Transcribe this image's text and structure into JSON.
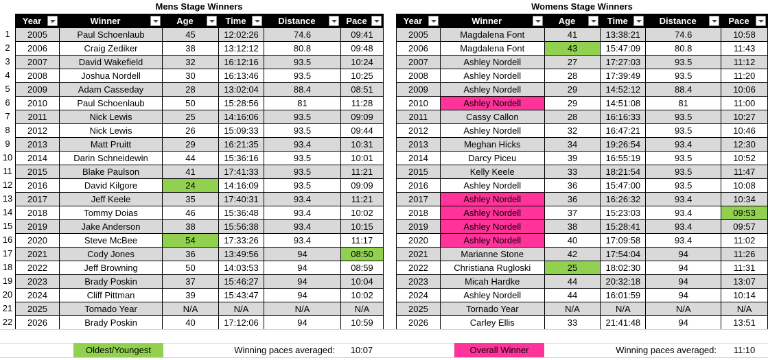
{
  "mens": {
    "title": "Mens Stage Winners",
    "headers": [
      "Year",
      "Winner",
      "Age",
      "Time",
      "Distance",
      "Pace"
    ],
    "rows": [
      [
        "2005",
        "Paul Schoenlaub",
        "45",
        "12:02:26",
        "74.6",
        "09:41"
      ],
      [
        "2006",
        "Craig Zediker",
        "38",
        "13:12:12",
        "80.8",
        "09:48"
      ],
      [
        "2007",
        "David Wakefield",
        "32",
        "16:12:16",
        "93.5",
        "10:24"
      ],
      [
        "2008",
        "Joshua Nordell",
        "30",
        "16:13:46",
        "93.5",
        "10:25"
      ],
      [
        "2009",
        "Adam Casseday",
        "28",
        "13:02:04",
        "88.4",
        "08:51"
      ],
      [
        "2010",
        "Paul Schoenlaub",
        "50",
        "15:28:56",
        "81",
        "11:28"
      ],
      [
        "2011",
        "Nick Lewis",
        "25",
        "14:16:06",
        "93.5",
        "09:09"
      ],
      [
        "2012",
        "Nick Lewis",
        "26",
        "15:09:33",
        "93.5",
        "09:44"
      ],
      [
        "2013",
        "Matt Pruitt",
        "29",
        "16:21:35",
        "93.4",
        "10:31"
      ],
      [
        "2014",
        "Darin Schneidewin",
        "44",
        "15:36:16",
        "93.5",
        "10:01"
      ],
      [
        "2015",
        "Blake Paulson",
        "41",
        "17:41:33",
        "93.5",
        "11:21"
      ],
      [
        "2016",
        "David Kilgore",
        "24",
        "14:16:09",
        "93.5",
        "09:09"
      ],
      [
        "2017",
        "Jeff Keele",
        "35",
        "17:40:31",
        "93.4",
        "11:21"
      ],
      [
        "2018",
        "Tommy Doias",
        "46",
        "15:36:48",
        "93.4",
        "10:02"
      ],
      [
        "2019",
        "Jake Anderson",
        "38",
        "15:56:38",
        "93.4",
        "10:15"
      ],
      [
        "2020",
        "Steve McBee",
        "54",
        "17:33:26",
        "93.4",
        "11:17"
      ],
      [
        "2021",
        "Cody Jones",
        "36",
        "13:49:56",
        "94",
        "08:50"
      ],
      [
        "2022",
        "Jeff Browning",
        "50",
        "14:03:53",
        "94",
        "08:59"
      ],
      [
        "2023",
        "Brady Poskin",
        "37",
        "15:46:27",
        "94",
        "10:04"
      ],
      [
        "2024",
        "Cliff Pittman",
        "39",
        "15:43:47",
        "94",
        "10:02"
      ],
      [
        "2025",
        "Tornado Year",
        "N/A",
        "N/A",
        "N/A",
        "N/A"
      ],
      [
        "2026",
        "Brady Poskin",
        "40",
        "17:12:06",
        "94",
        "10:59"
      ]
    ],
    "highlights": [
      {
        "row": 11,
        "col": 2,
        "color": "green"
      },
      {
        "row": 15,
        "col": 2,
        "color": "green"
      },
      {
        "row": 16,
        "col": 5,
        "color": "green"
      }
    ],
    "avg_label": "Winning paces averaged:",
    "avg_value": "10:07"
  },
  "womens": {
    "title": "Womens Stage Winners",
    "headers": [
      "Year",
      "Winner",
      "Age",
      "Time",
      "Distance",
      "Pace"
    ],
    "rows": [
      [
        "2005",
        "Magdalena Font",
        "41",
        "13:38:21",
        "74.6",
        "10:58"
      ],
      [
        "2006",
        "Magdalena Font",
        "43",
        "15:47:09",
        "80.8",
        "11:43"
      ],
      [
        "2007",
        "Ashley Nordell",
        "27",
        "17:27:03",
        "93.5",
        "11:12"
      ],
      [
        "2008",
        "Ashley Nordell",
        "28",
        "17:39:49",
        "93.5",
        "11:20"
      ],
      [
        "2009",
        "Ashley Nordell",
        "29",
        "14:52:12",
        "88.4",
        "10:06"
      ],
      [
        "2010",
        "Ashley Nordell",
        "29",
        "14:51:08",
        "81",
        "11:00"
      ],
      [
        "2011",
        "Cassy Callon",
        "28",
        "16:16:33",
        "93.5",
        "10:27"
      ],
      [
        "2012",
        "Ashley Nordell",
        "32",
        "16:47:21",
        "93.5",
        "10:46"
      ],
      [
        "2013",
        "Meghan Hicks",
        "34",
        "19:26:54",
        "93.4",
        "12:30"
      ],
      [
        "2014",
        "Darcy Piceu",
        "39",
        "16:55:19",
        "93.5",
        "10:52"
      ],
      [
        "2015",
        "Kelly Keele",
        "33",
        "18:21:54",
        "93.5",
        "11:47"
      ],
      [
        "2016",
        "Ashley Nordell",
        "36",
        "15:47:00",
        "93.5",
        "10:08"
      ],
      [
        "2017",
        "Ashley Nordell",
        "36",
        "16:26:32",
        "93.4",
        "10:34"
      ],
      [
        "2018",
        "Ashley Nordell",
        "37",
        "15:23:03",
        "93.4",
        "09:53"
      ],
      [
        "2019",
        "Ashley Nordell",
        "38",
        "15:28:41",
        "93.4",
        "09:57"
      ],
      [
        "2020",
        "Ashley Nordell",
        "40",
        "17:09:58",
        "93.4",
        "11:02"
      ],
      [
        "2021",
        "Marianne Stone",
        "42",
        "17:54:04",
        "94",
        "11:26"
      ],
      [
        "2022",
        "Christiana Rugloski",
        "25",
        "18:02:30",
        "94",
        "11:31"
      ],
      [
        "2023",
        "Micah Hardke",
        "44",
        "20:32:18",
        "94",
        "13:07"
      ],
      [
        "2024",
        "Ashley Nordell",
        "44",
        "16:01:59",
        "94",
        "10:14"
      ],
      [
        "2025",
        "Tornado Year",
        "N/A",
        "N/A",
        "N/A",
        "N/A"
      ],
      [
        "2026",
        "Carley Ellis",
        "33",
        "21:41:48",
        "94",
        "13:51"
      ]
    ],
    "highlights": [
      {
        "row": 1,
        "col": 2,
        "color": "green"
      },
      {
        "row": 17,
        "col": 2,
        "color": "green"
      },
      {
        "row": 13,
        "col": 5,
        "color": "green"
      },
      {
        "row": 5,
        "col": 1,
        "color": "pink"
      },
      {
        "row": 12,
        "col": 1,
        "color": "pink"
      },
      {
        "row": 13,
        "col": 1,
        "color": "pink"
      },
      {
        "row": 14,
        "col": 1,
        "color": "pink"
      },
      {
        "row": 15,
        "col": 1,
        "color": "pink"
      }
    ],
    "avg_label": "Winning paces averaged:",
    "avg_value": "11:10"
  },
  "row_numbers": [
    "1",
    "2",
    "3",
    "4",
    "5",
    "6",
    "7",
    "8",
    "9",
    "10",
    "11",
    "12",
    "13",
    "14",
    "15",
    "16",
    "17",
    "18",
    "19",
    "20",
    "21",
    "22"
  ],
  "legend": {
    "green_label": "Oldest/Youngest",
    "pink_label": "Overall Winner"
  },
  "colors": {
    "green": "#92d050",
    "pink": "#ff3399",
    "header_bg": "#000000",
    "band": "#d9d9d9"
  },
  "icons": {
    "filter": "filter-dropdown-icon",
    "sort": "sort-ascending-icon"
  }
}
